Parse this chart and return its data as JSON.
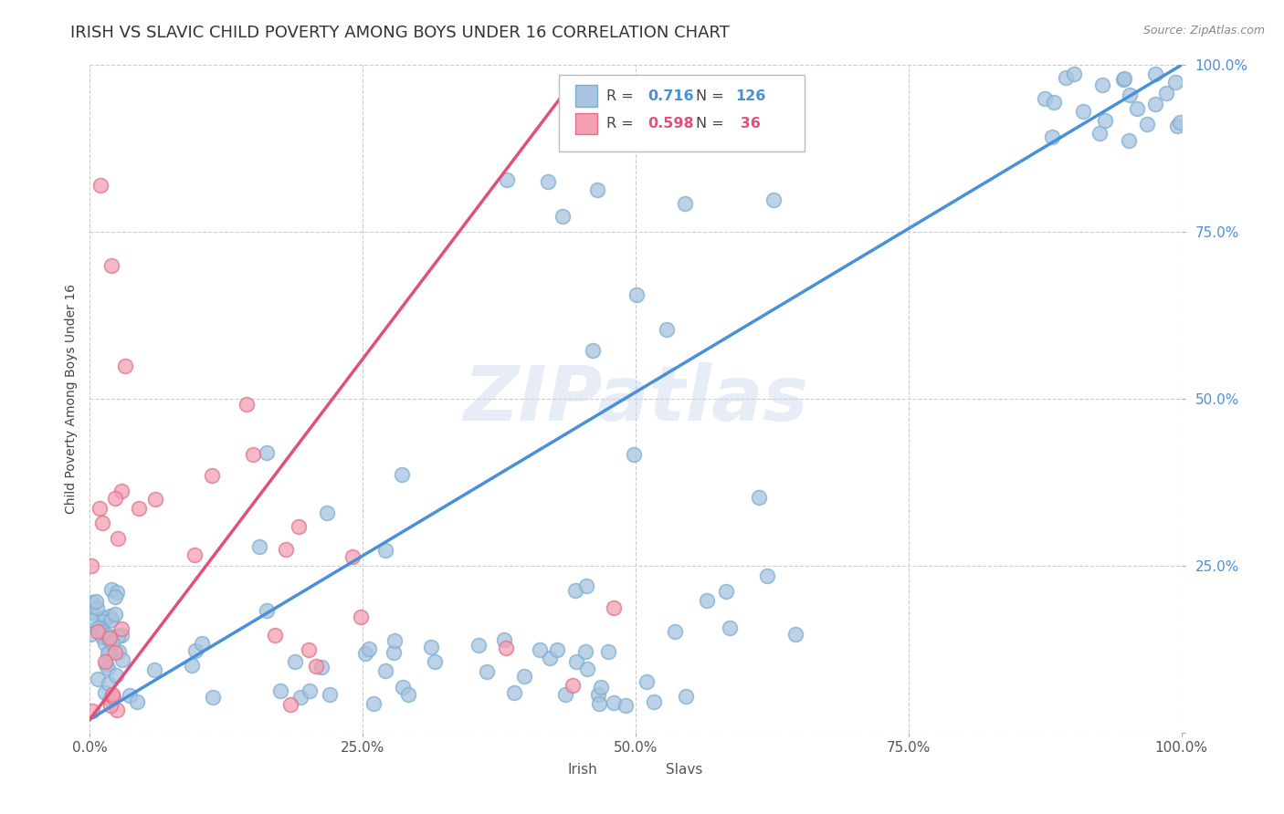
{
  "title": "IRISH VS SLAVIC CHILD POVERTY AMONG BOYS UNDER 16 CORRELATION CHART",
  "source_text": "Source: ZipAtlas.com",
  "ylabel": "Child Poverty Among Boys Under 16",
  "watermark": "ZIPatlas",
  "xlim": [
    0,
    1
  ],
  "ylim": [
    0,
    1
  ],
  "xticks": [
    0.0,
    0.25,
    0.5,
    0.75,
    1.0
  ],
  "yticks": [
    0.0,
    0.25,
    0.5,
    0.75,
    1.0
  ],
  "xticklabels": [
    "0.0%",
    "25.0%",
    "50.0%",
    "75.0%",
    "100.0%"
  ],
  "yticklabels": [
    "",
    "25.0%",
    "50.0%",
    "75.0%",
    "100.0%"
  ],
  "irish_color": "#a8c4e0",
  "slavs_color": "#f4a0b0",
  "irish_edge_color": "#7aaed0",
  "slavs_edge_color": "#e07090",
  "irish_line_color": "#4a90d9",
  "slavs_line_color": "#e0507a",
  "ytick_color": "#4a90d9",
  "background_color": "#ffffff",
  "grid_color": "#cccccc",
  "title_fontsize": 13,
  "axis_fontsize": 10,
  "tick_fontsize": 11,
  "legend_R_color_irish": "#4a90d9",
  "legend_R_color_slavs": "#e0507a",
  "legend_irish_label": "Irish",
  "legend_slavs_label": "Slavs"
}
